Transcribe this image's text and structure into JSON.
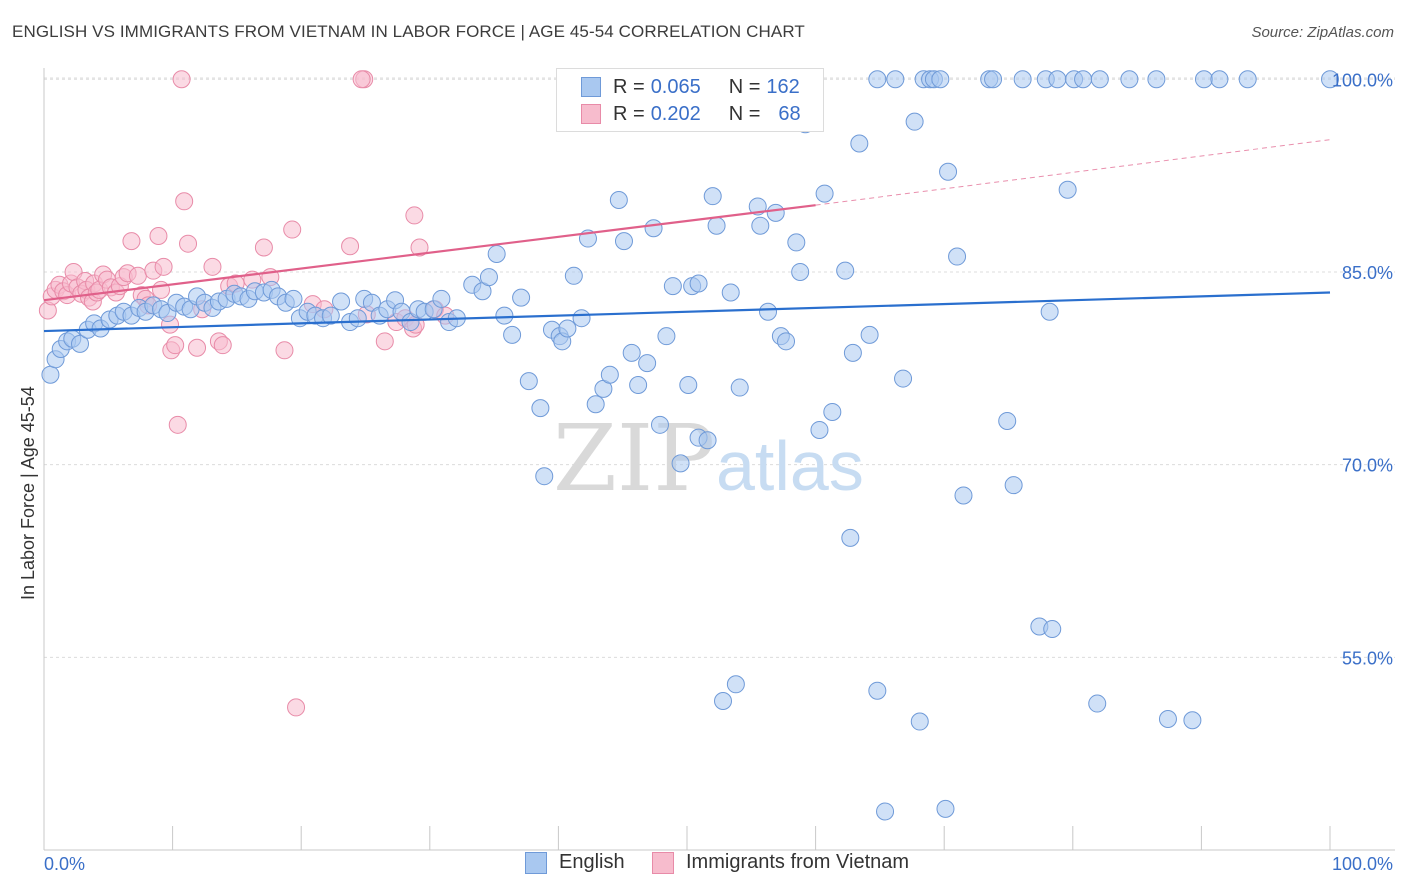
{
  "title": "ENGLISH VS IMMIGRANTS FROM VIETNAM IN LABOR FORCE | AGE 45-54 CORRELATION CHART",
  "source": "Source: ZipAtlas.com",
  "watermark": {
    "zip": "ZIP",
    "atlas": "atlas"
  },
  "legend": {
    "english": {
      "r_label": "R = ",
      "r_value": "0.065",
      "n_label": "N = ",
      "n_value": "162"
    },
    "vietnam": {
      "r_label": "R = ",
      "r_value": "0.202",
      "n_label": "N = ",
      "n_value": "68"
    }
  },
  "bottom_legend": {
    "english": "English",
    "vietnam": "Immigrants from Vietnam"
  },
  "colors": {
    "english_fill": "#a9c8f0",
    "english_stroke": "#6f9ad8",
    "english_line": "#2a6fce",
    "vietnam_fill": "#f7bccd",
    "vietnam_stroke": "#e88ba8",
    "vietnam_line": "#e0608a",
    "axis_label": "#3a6fc8"
  },
  "chart_data": {
    "type": "scatter",
    "title": "ENGLISH VS IMMIGRANTS FROM VIETNAM IN LABOR FORCE | AGE 45-54 CORRELATION CHART",
    "xlabel": "",
    "ylabel": "In Labor Force | Age 45-54",
    "xlim": [
      0,
      100
    ],
    "ylim": [
      40,
      101.5
    ],
    "x_tick_labels": [
      "0.0%",
      "100.0%"
    ],
    "y_ticks": [
      100,
      85,
      70,
      55
    ],
    "y_tick_labels": [
      "100.0%",
      "85.0%",
      "70.0%",
      "55.0%"
    ],
    "grid": true,
    "series": [
      {
        "name": "English",
        "r": 0.065,
        "n": 162,
        "trend": {
          "x": [
            0,
            100
          ],
          "y": [
            80.4,
            83.4
          ]
        },
        "points": [
          [
            0.5,
            77
          ],
          [
            0.9,
            78.2
          ],
          [
            1.3,
            79
          ],
          [
            1.8,
            79.6
          ],
          [
            2.2,
            79.8
          ],
          [
            2.8,
            79.4
          ],
          [
            3.4,
            80.5
          ],
          [
            3.9,
            81
          ],
          [
            4.4,
            80.6
          ],
          [
            5.1,
            81.3
          ],
          [
            5.7,
            81.6
          ],
          [
            6.2,
            81.9
          ],
          [
            6.8,
            81.6
          ],
          [
            7.4,
            82.2
          ],
          [
            7.9,
            81.9
          ],
          [
            8.5,
            82.4
          ],
          [
            9.1,
            82.1
          ],
          [
            9.6,
            81.8
          ],
          [
            10.3,
            82.6
          ],
          [
            10.9,
            82.3
          ],
          [
            11.4,
            82.1
          ],
          [
            11.9,
            83.1
          ],
          [
            12.5,
            82.6
          ],
          [
            13.1,
            82.2
          ],
          [
            13.6,
            82.7
          ],
          [
            14.2,
            82.9
          ],
          [
            14.8,
            83.3
          ],
          [
            15.3,
            83.1
          ],
          [
            15.9,
            82.9
          ],
          [
            16.4,
            83.5
          ],
          [
            17.1,
            83.4
          ],
          [
            17.7,
            83.6
          ],
          [
            18.2,
            83.1
          ],
          [
            18.8,
            82.6
          ],
          [
            19.4,
            82.9
          ],
          [
            19.9,
            81.4
          ],
          [
            20.5,
            81.9
          ],
          [
            21.1,
            81.6
          ],
          [
            21.7,
            81.4
          ],
          [
            22.3,
            81.6
          ],
          [
            23.1,
            82.7
          ],
          [
            23.8,
            81.1
          ],
          [
            24.4,
            81.4
          ],
          [
            24.9,
            82.9
          ],
          [
            25.5,
            82.6
          ],
          [
            26.1,
            81.6
          ],
          [
            26.7,
            82.1
          ],
          [
            27.3,
            82.8
          ],
          [
            27.8,
            81.9
          ],
          [
            28.5,
            81.1
          ],
          [
            29.1,
            82.1
          ],
          [
            29.6,
            81.9
          ],
          [
            30.3,
            82.1
          ],
          [
            30.9,
            82.9
          ],
          [
            31.5,
            81.1
          ],
          [
            32.1,
            81.4
          ],
          [
            33.3,
            84
          ],
          [
            34.1,
            83.5
          ],
          [
            34.6,
            84.6
          ],
          [
            35.2,
            86.4
          ],
          [
            35.8,
            81.6
          ],
          [
            36.4,
            80.1
          ],
          [
            37.1,
            83
          ],
          [
            37.7,
            76.5
          ],
          [
            38.6,
            74.4
          ],
          [
            38.9,
            69.1
          ],
          [
            39.5,
            80.5
          ],
          [
            40.1,
            80
          ],
          [
            40.3,
            79.6
          ],
          [
            40.7,
            80.6
          ],
          [
            41.2,
            84.7
          ],
          [
            41.8,
            81.4
          ],
          [
            42.3,
            87.6
          ],
          [
            42.9,
            74.7
          ],
          [
            43.5,
            75.9
          ],
          [
            44,
            77
          ],
          [
            44.7,
            90.6
          ],
          [
            45.1,
            87.4
          ],
          [
            45.7,
            78.7
          ],
          [
            46.2,
            76.2
          ],
          [
            46.9,
            77.9
          ],
          [
            47.4,
            88.4
          ],
          [
            47.9,
            73.1
          ],
          [
            48.4,
            80
          ],
          [
            48.9,
            83.9
          ],
          [
            49.5,
            70.1
          ],
          [
            50.1,
            76.2
          ],
          [
            50.4,
            83.9
          ],
          [
            50.9,
            84.1
          ],
          [
            50.9,
            72.1
          ],
          [
            51.6,
            71.9
          ],
          [
            52,
            90.9
          ],
          [
            52.3,
            88.6
          ],
          [
            52.8,
            51.6
          ],
          [
            53.4,
            83.4
          ],
          [
            53.8,
            52.9
          ],
          [
            54.1,
            76
          ],
          [
            55.5,
            90.1
          ],
          [
            55.7,
            88.6
          ],
          [
            56.3,
            81.9
          ],
          [
            56.9,
            89.6
          ],
          [
            57.3,
            80
          ],
          [
            57.7,
            79.6
          ],
          [
            58.5,
            87.3
          ],
          [
            58.8,
            85
          ],
          [
            59.2,
            96.5
          ],
          [
            60.3,
            72.7
          ],
          [
            60.7,
            91.1
          ],
          [
            61.3,
            74.1
          ],
          [
            62.3,
            85.1
          ],
          [
            62.7,
            64.3
          ],
          [
            62.9,
            78.7
          ],
          [
            63.4,
            95
          ],
          [
            64.2,
            80.1
          ],
          [
            64.8,
            52.4
          ],
          [
            64.8,
            100
          ],
          [
            65.4,
            43
          ],
          [
            66.2,
            100
          ],
          [
            66.8,
            76.7
          ],
          [
            67.7,
            96.7
          ],
          [
            68.1,
            50
          ],
          [
            68.4,
            100
          ],
          [
            68.9,
            100
          ],
          [
            69.2,
            100
          ],
          [
            69.7,
            100
          ],
          [
            70.1,
            43.2
          ],
          [
            70.3,
            92.8
          ],
          [
            71,
            86.2
          ],
          [
            71.5,
            67.6
          ],
          [
            73.5,
            100
          ],
          [
            73.8,
            100
          ],
          [
            74.9,
            73.4
          ],
          [
            75.4,
            68.4
          ],
          [
            76.1,
            100
          ],
          [
            77.4,
            57.4
          ],
          [
            77.9,
            100
          ],
          [
            78.2,
            81.9
          ],
          [
            78.4,
            57.2
          ],
          [
            78.8,
            100
          ],
          [
            79.6,
            91.4
          ],
          [
            80.1,
            100
          ],
          [
            80.8,
            100
          ],
          [
            81.9,
            51.4
          ],
          [
            82.1,
            100
          ],
          [
            84.4,
            100
          ],
          [
            86.5,
            100
          ],
          [
            87.4,
            50.2
          ],
          [
            89.3,
            50.1
          ],
          [
            90.2,
            100
          ],
          [
            91.4,
            100
          ],
          [
            93.6,
            100
          ],
          [
            100,
            100
          ]
        ]
      },
      {
        "name": "Immigrants from Vietnam",
        "r": 0.202,
        "n": 68,
        "trend": {
          "x": [
            0,
            60
          ],
          "y": [
            82.8,
            90.2
          ]
        },
        "trend_ext": {
          "x": [
            60,
            100
          ],
          "y": [
            90.2,
            95.3
          ]
        },
        "points": [
          [
            0.3,
            82
          ],
          [
            0.6,
            83.1
          ],
          [
            0.9,
            83.6
          ],
          [
            1.2,
            84
          ],
          [
            1.5,
            83.5
          ],
          [
            1.8,
            83.2
          ],
          [
            2.1,
            84.1
          ],
          [
            2.3,
            85
          ],
          [
            2.6,
            83.8
          ],
          [
            2.9,
            83.3
          ],
          [
            3.2,
            84.3
          ],
          [
            3.3,
            83.6
          ],
          [
            3.5,
            83
          ],
          [
            3.8,
            82.7
          ],
          [
            3.9,
            84.1
          ],
          [
            4.1,
            83.4
          ],
          [
            4.3,
            83.6
          ],
          [
            4.6,
            84.8
          ],
          [
            4.9,
            84.4
          ],
          [
            5.2,
            83.8
          ],
          [
            5.6,
            83.4
          ],
          [
            5.9,
            83.9
          ],
          [
            6.2,
            84.6
          ],
          [
            6.5,
            84.9
          ],
          [
            6.8,
            87.4
          ],
          [
            7.3,
            84.7
          ],
          [
            7.6,
            83.2
          ],
          [
            7.9,
            82.9
          ],
          [
            8.1,
            82.4
          ],
          [
            8.5,
            85.1
          ],
          [
            8.9,
            87.8
          ],
          [
            9.1,
            83.6
          ],
          [
            9.3,
            85.4
          ],
          [
            9.8,
            80.9
          ],
          [
            9.9,
            78.9
          ],
          [
            10.2,
            79.3
          ],
          [
            10.4,
            73.1
          ],
          [
            10.7,
            100
          ],
          [
            10.9,
            90.5
          ],
          [
            11.2,
            87.2
          ],
          [
            11.9,
            79.1
          ],
          [
            12.3,
            82.1
          ],
          [
            13.1,
            85.4
          ],
          [
            13.6,
            79.6
          ],
          [
            13.9,
            79.3
          ],
          [
            14.4,
            83.9
          ],
          [
            14.9,
            84.1
          ],
          [
            16.2,
            84.4
          ],
          [
            17.1,
            86.9
          ],
          [
            17.6,
            84.6
          ],
          [
            18.7,
            78.9
          ],
          [
            19.3,
            88.3
          ],
          [
            19.6,
            51.1
          ],
          [
            20.9,
            82.5
          ],
          [
            21.8,
            82.1
          ],
          [
            23.8,
            87
          ],
          [
            24.9,
            100
          ],
          [
            24.7,
            100
          ],
          [
            25.1,
            81.7
          ],
          [
            26.5,
            79.6
          ],
          [
            27.4,
            81.1
          ],
          [
            28.1,
            81.4
          ],
          [
            28.7,
            80.6
          ],
          [
            28.9,
            80.9
          ],
          [
            28.8,
            89.4
          ],
          [
            29.2,
            86.9
          ],
          [
            30.4,
            82.1
          ],
          [
            31.2,
            81.6
          ]
        ]
      }
    ]
  }
}
